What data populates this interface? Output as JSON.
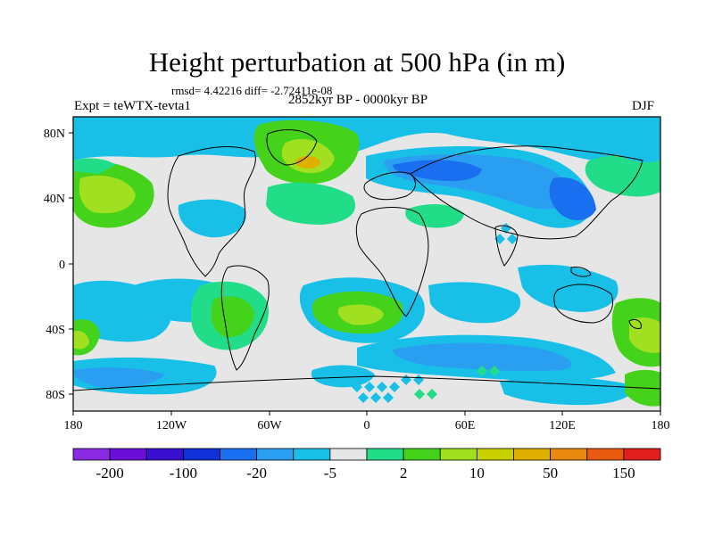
{
  "title": "Height perturbation at 500 hPa (in m)",
  "stats_line": "rmsd= 4.42216 diff= -2.72411e-08",
  "left_label": "Expt = teWTX-tevta1",
  "center_label": "2852kyr BP - 0000kyr BP",
  "right_label": "DJF",
  "axes": {
    "x_ticks": [
      "180",
      "120W",
      "60W",
      "0",
      "60E",
      "120E",
      "180"
    ],
    "y_ticks": [
      "80N",
      "40N",
      "0",
      "40S",
      "80S"
    ]
  },
  "colorbar": {
    "colors": [
      "#8a2be2",
      "#6a0fd8",
      "#3a0fcf",
      "#1030d8",
      "#1a6ef0",
      "#2a9ef0",
      "#18c0e8",
      "#e6e6e6",
      "#22dd88",
      "#44d21a",
      "#a0e020",
      "#c8d000",
      "#e0b000",
      "#e88a10",
      "#e85a10",
      "#e01e1e"
    ],
    "labels": [
      "-200",
      "-100",
      "-20",
      "-5",
      "2",
      "10",
      "50",
      "150"
    ]
  },
  "palette": {
    "background": "#e6e6e6",
    "light_blue": "#18c0e8",
    "mid_blue": "#2a9ef0",
    "blue": "#1a6ef0",
    "green_light": "#22dd88",
    "green": "#44d21a",
    "yellow_green": "#a0e020",
    "orange": "#e0b000"
  }
}
